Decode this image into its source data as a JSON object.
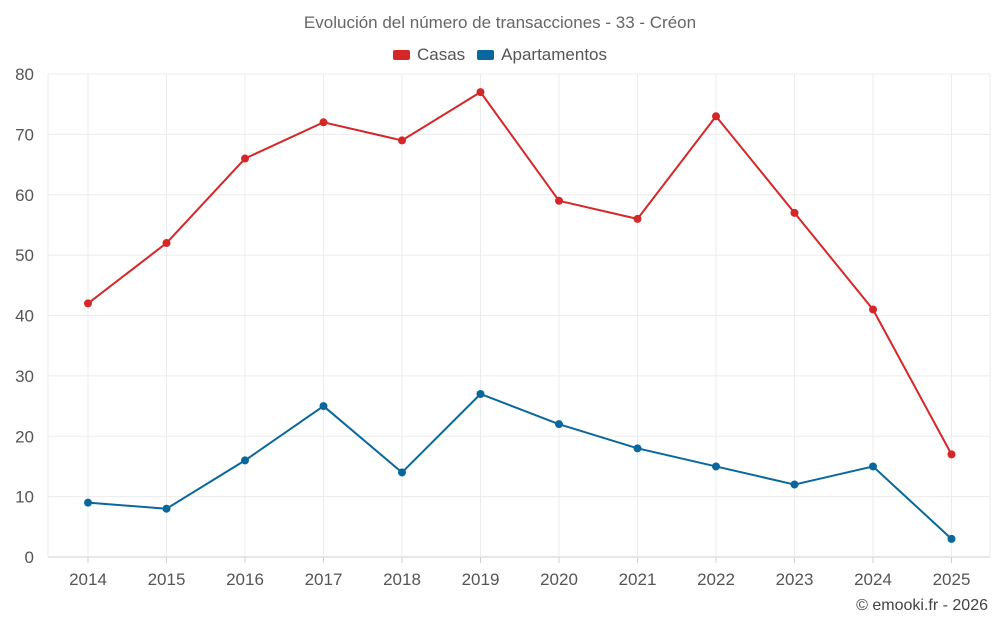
{
  "chart_data": {
    "type": "line",
    "title": "Evolución del número de transacciones - 33 - Créon",
    "categories": [
      "2014",
      "2015",
      "2016",
      "2017",
      "2018",
      "2019",
      "2020",
      "2021",
      "2022",
      "2023",
      "2024",
      "2025"
    ],
    "series": [
      {
        "name": "Casas",
        "color": "#d62728",
        "values": [
          42,
          52,
          66,
          72,
          69,
          77,
          59,
          56,
          73,
          57,
          41,
          17
        ]
      },
      {
        "name": "Apartamentos",
        "color": "#08679c",
        "values": [
          9,
          8,
          16,
          25,
          14,
          27,
          22,
          18,
          15,
          12,
          15,
          3
        ]
      }
    ],
    "ylim": [
      0,
      80
    ],
    "yticks": [
      0,
      10,
      20,
      30,
      40,
      50,
      60,
      70,
      80
    ],
    "grid": true,
    "legend": "top-center",
    "xlabel": "",
    "ylabel": ""
  },
  "footer": {
    "credit": "© emooki.fr - 2026"
  }
}
